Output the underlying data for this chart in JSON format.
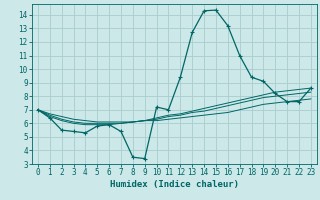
{
  "xlabel": "Humidex (Indice chaleur)",
  "bg_color": "#cce8e8",
  "grid_color": "#aacccc",
  "line_color": "#006666",
  "xlim": [
    -0.5,
    23.5
  ],
  "ylim": [
    3,
    14.8
  ],
  "xticks": [
    0,
    1,
    2,
    3,
    4,
    5,
    6,
    7,
    8,
    9,
    10,
    11,
    12,
    13,
    14,
    15,
    16,
    17,
    18,
    19,
    20,
    21,
    22,
    23
  ],
  "yticks": [
    3,
    4,
    5,
    6,
    7,
    8,
    9,
    10,
    11,
    12,
    13,
    14
  ],
  "main_line": {
    "x": [
      0,
      1,
      2,
      3,
      4,
      5,
      6,
      7,
      8,
      9,
      10,
      11,
      12,
      13,
      14,
      15,
      16,
      17,
      18,
      19,
      20,
      21,
      22,
      23
    ],
    "y": [
      7.0,
      6.4,
      5.5,
      5.4,
      5.3,
      5.8,
      5.9,
      5.4,
      3.5,
      3.4,
      7.2,
      7.0,
      9.4,
      12.7,
      14.3,
      14.35,
      13.2,
      11.0,
      9.4,
      9.1,
      8.2,
      7.6,
      7.6,
      8.6
    ]
  },
  "trend_lines": [
    {
      "x": [
        0,
        1,
        2,
        3,
        4,
        5,
        6,
        7,
        8,
        9,
        10,
        11,
        12,
        13,
        14,
        15,
        16,
        17,
        18,
        19,
        20,
        21,
        22,
        23
      ],
      "y": [
        7.0,
        6.5,
        6.2,
        6.0,
        5.9,
        5.9,
        5.9,
        6.0,
        6.1,
        6.2,
        6.4,
        6.6,
        6.7,
        6.9,
        7.1,
        7.3,
        7.5,
        7.7,
        7.9,
        8.1,
        8.3,
        8.4,
        8.5,
        8.6
      ]
    },
    {
      "x": [
        0,
        1,
        2,
        3,
        4,
        5,
        6,
        7,
        8,
        9,
        10,
        11,
        12,
        13,
        14,
        15,
        16,
        17,
        18,
        19,
        20,
        21,
        22,
        23
      ],
      "y": [
        7.0,
        6.6,
        6.3,
        6.1,
        6.0,
        6.0,
        6.0,
        6.0,
        6.1,
        6.2,
        6.3,
        6.5,
        6.6,
        6.8,
        6.9,
        7.1,
        7.3,
        7.5,
        7.7,
        7.9,
        8.0,
        8.1,
        8.2,
        8.3
      ]
    },
    {
      "x": [
        0,
        1,
        2,
        3,
        4,
        5,
        6,
        7,
        8,
        9,
        10,
        11,
        12,
        13,
        14,
        15,
        16,
        17,
        18,
        19,
        20,
        21,
        22,
        23
      ],
      "y": [
        7.0,
        6.7,
        6.5,
        6.3,
        6.2,
        6.1,
        6.1,
        6.1,
        6.1,
        6.2,
        6.2,
        6.3,
        6.4,
        6.5,
        6.6,
        6.7,
        6.8,
        7.0,
        7.2,
        7.4,
        7.5,
        7.6,
        7.7,
        7.8
      ]
    }
  ]
}
